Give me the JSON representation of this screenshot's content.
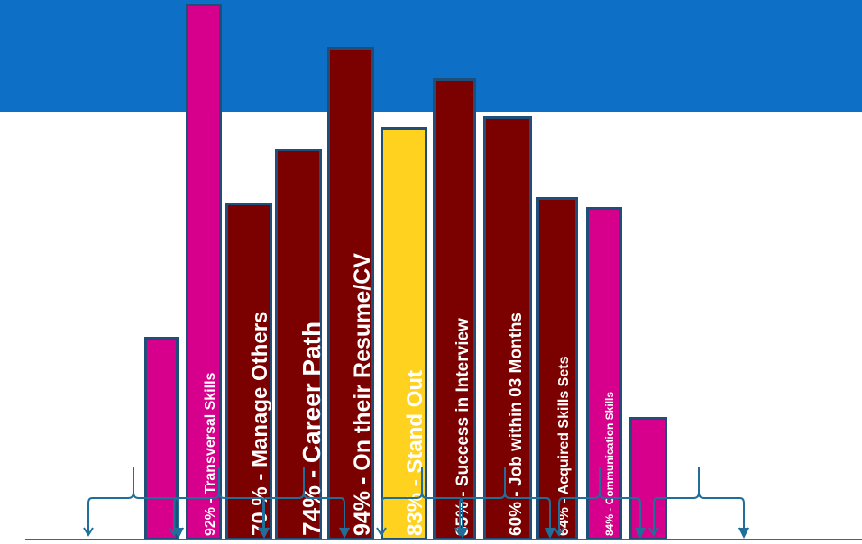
{
  "colors": {
    "banner": "#0d6fc6",
    "magenta": "#d6008c",
    "maroon": "#7b0000",
    "yellow": "#ffd21f",
    "border": "#1f4e79",
    "arrow": "#1f6f9a"
  },
  "bars": [
    {
      "label": "",
      "value": 0.38,
      "color": "#d6008c"
    },
    {
      "label": "92% - Transversal Skills",
      "value": 1.0,
      "color": "#d6008c"
    },
    {
      "label": "70 % - Manage Others",
      "value": 0.63,
      "color": "#7b0000"
    },
    {
      "label": "74% - Career Path",
      "value": 0.73,
      "color": "#7b0000"
    },
    {
      "label": "94% - On their Resume/CV",
      "value": 0.92,
      "color": "#7b0000"
    },
    {
      "label": "83% - Stand Out",
      "value": 0.77,
      "color": "#ffd21f"
    },
    {
      "label": "85% - Success in Interview",
      "value": 0.86,
      "color": "#7b0000"
    },
    {
      "label": "60% - Job within 03 Months",
      "value": 0.79,
      "color": "#7b0000"
    },
    {
      "label": "64% - Acquired Skills Sets",
      "value": 0.64,
      "color": "#7b0000"
    },
    {
      "label": "84% - Communication Skills",
      "value": 0.62,
      "color": "#d6008c"
    },
    {
      "label": "",
      "value": 0.23,
      "color": "#d6008c"
    }
  ]
}
